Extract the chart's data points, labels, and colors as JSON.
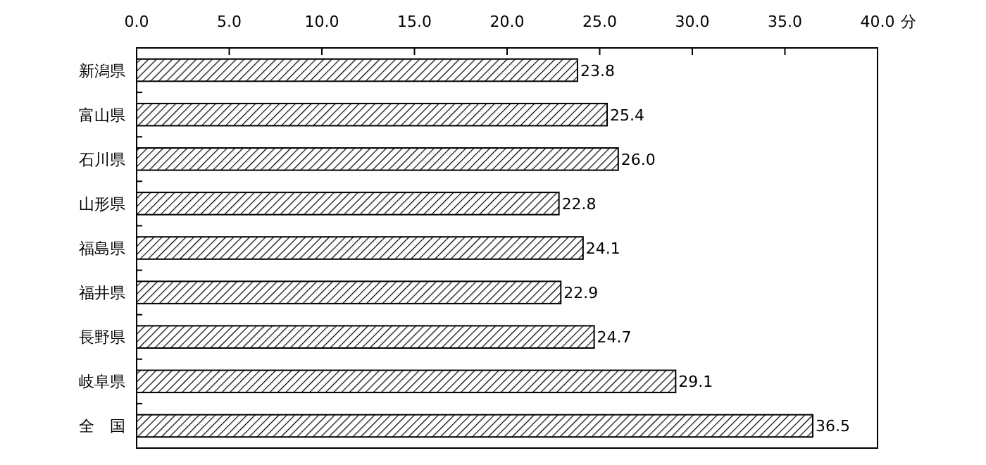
{
  "chart_data": {
    "type": "bar",
    "orientation": "horizontal",
    "xlabel": "分",
    "categories": [
      "新潟県",
      "富山県",
      "石川県",
      "山形県",
      "福島県",
      "福井県",
      "長野県",
      "岐阜県",
      "全　国"
    ],
    "values": [
      23.8,
      25.4,
      26.0,
      22.8,
      24.1,
      22.9,
      24.7,
      29.1,
      36.5
    ],
    "value_labels": [
      "23.8",
      "25.4",
      "26.0",
      "22.8",
      "24.1",
      "22.9",
      "24.7",
      "29.1",
      "36.5"
    ],
    "color": "#000000",
    "xlim": [
      0,
      40
    ],
    "xticks": [
      {
        "value": 0,
        "label": "0.0"
      },
      {
        "value": 5,
        "label": "5.0"
      },
      {
        "value": 10,
        "label": "10.0"
      },
      {
        "value": 15,
        "label": "15.0"
      },
      {
        "value": 20,
        "label": "20.0"
      },
      {
        "value": 25,
        "label": "25.0"
      },
      {
        "value": 30,
        "label": "30.0"
      },
      {
        "value": 35,
        "label": "35.0"
      },
      {
        "value": 40,
        "label": "40.0"
      }
    ]
  }
}
